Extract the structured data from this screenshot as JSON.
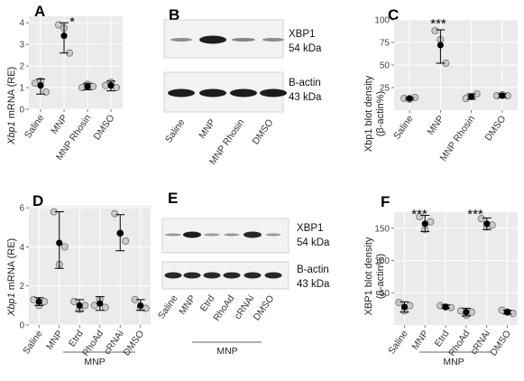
{
  "panels": {
    "A": {
      "letter": "A",
      "ylabel_gene": "Xbp1",
      "ylabel_rest": " mRNA (RE)",
      "significance": "*"
    },
    "B": {
      "letter": "B",
      "band1_name": "XBP1",
      "band1_size": "54 kDa",
      "band2_name": "B-actin",
      "band2_size": "43 kDa",
      "lanes": [
        "Saline",
        "MNP",
        "MNP Rhosin",
        "DMSO"
      ]
    },
    "C": {
      "letter": "C",
      "ylabel_line1": "Xbp1 blot density",
      "ylabel_line2": "(β-actin%)",
      "significance": "***"
    },
    "D": {
      "letter": "D",
      "ylabel_gene": "Xbp1",
      "ylabel_rest": " mRNA (RE)",
      "group_label": "MNP"
    },
    "E": {
      "letter": "E",
      "band1_name": "XBP1",
      "band1_size": "54 kDa",
      "band2_name": "B-actin",
      "band2_size": "43 kDa",
      "lanes": [
        "Saline",
        "MNP",
        "Etrd",
        "RhoAd",
        "cRNAi",
        "DMSO"
      ],
      "group_label": "MNP"
    },
    "F": {
      "letter": "F",
      "ylabel_line1": "XBP1 blot density",
      "ylabel_line2": "(β-actin%)",
      "significance_1": "***",
      "significance_2": "***",
      "group_label": "MNP"
    }
  },
  "colors": {
    "panel_bg": "#ebebeb",
    "grid": "#ffffff",
    "point_fill": "#c8c8c8",
    "point_stroke": "#777777",
    "mean": "#000000"
  },
  "chart_data": [
    {
      "id": "A",
      "type": "scatter",
      "categories": [
        "Saline",
        "MNP",
        "MNP Rhosin",
        "DMSO"
      ],
      "ylim": [
        0,
        4.3
      ],
      "yticks": [
        0,
        1,
        2,
        3,
        4
      ],
      "ylabel": "Xbp1 mRNA (RE)",
      "points": [
        [
          1.2,
          1.3,
          0.8
        ],
        [
          3.9,
          3.75,
          2.6
        ],
        [
          1.0,
          1.15,
          1.05
        ],
        [
          1.1,
          1.25,
          1.0
        ]
      ],
      "means": [
        1.1,
        3.4,
        1.05,
        1.1
      ],
      "err_low": [
        0.7,
        2.6,
        0.9,
        0.85
      ],
      "err_high": [
        1.4,
        4.0,
        1.2,
        1.3
      ],
      "annotations": [
        {
          "category": "MNP",
          "text": "*"
        }
      ]
    },
    {
      "id": "C",
      "type": "scatter",
      "categories": [
        "Saline",
        "MNP",
        "MNP Rhosin",
        "DMSO"
      ],
      "ylim": [
        0,
        100
      ],
      "yticks": [
        25,
        50,
        75,
        100
      ],
      "ylabel": "Xbp1 blot density (β-actin%)",
      "points": [
        [
          13,
          12,
          14
        ],
        [
          88,
          78,
          52
        ],
        [
          13,
          15,
          18
        ],
        [
          16,
          17,
          16
        ]
      ],
      "means": [
        13,
        72,
        15,
        16
      ],
      "err_low": [
        12,
        52,
        12,
        14
      ],
      "err_high": [
        14,
        89,
        18,
        18
      ],
      "annotations": [
        {
          "category": "MNP",
          "text": "***"
        }
      ]
    },
    {
      "id": "D",
      "type": "scatter",
      "categories": [
        "Saline",
        "MNP",
        "Etrd",
        "RhoAd",
        "cRNAi",
        "DMSO"
      ],
      "ylim": [
        0,
        6.1
      ],
      "yticks": [
        0,
        2,
        4,
        6
      ],
      "ylabel": "Xbp1 mRNA (RE)",
      "points": [
        [
          1.3,
          1.0,
          1.2
        ],
        [
          5.8,
          3.1,
          4.0
        ],
        [
          1.2,
          0.8,
          1.0
        ],
        [
          1.0,
          1.3,
          0.9
        ],
        [
          5.7,
          4.7,
          4.3
        ],
        [
          1.3,
          0.9,
          0.85
        ]
      ],
      "means": [
        1.2,
        4.2,
        1.0,
        1.1,
        4.7,
        1.0
      ],
      "err_low": [
        1.0,
        2.9,
        0.7,
        0.75,
        3.8,
        0.75
      ],
      "err_high": [
        1.4,
        5.8,
        1.3,
        1.45,
        5.65,
        1.3
      ],
      "group_label": "MNP"
    },
    {
      "id": "F",
      "type": "scatter",
      "categories": [
        "Saline",
        "MNP",
        "Etrd",
        "RhoAd",
        "cRNAi",
        "DMSO"
      ],
      "ylim": [
        0,
        175
      ],
      "yticks": [
        50,
        100,
        150
      ],
      "ylabel": "XBP1 blot density (β-actin%)",
      "points": [
        [
          35,
          22,
          30
        ],
        [
          168,
          148,
          160
        ],
        [
          30,
          28,
          27
        ],
        [
          22,
          15,
          20
        ],
        [
          165,
          152,
          155
        ],
        [
          23,
          20,
          18
        ]
      ],
      "means": [
        28,
        157,
        28,
        20,
        157,
        20
      ],
      "err_low": [
        20,
        145,
        26,
        14,
        148,
        17
      ],
      "err_high": [
        36,
        170,
        31,
        26,
        166,
        23
      ],
      "annotations": [
        {
          "category": "MNP",
          "text": "***"
        },
        {
          "category": "cRNAi",
          "text": "***"
        }
      ],
      "group_label": "MNP"
    }
  ]
}
